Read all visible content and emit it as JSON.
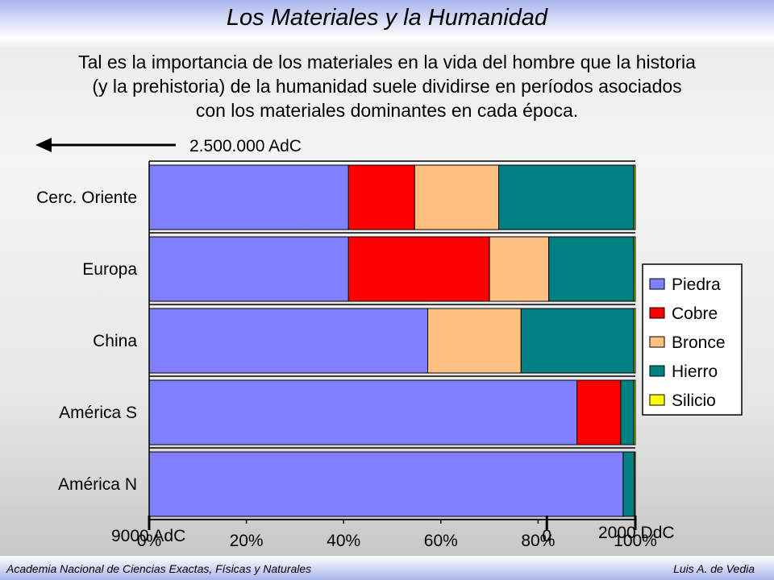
{
  "slide": {
    "title": "Los Materiales y la Humanidad",
    "subtitle_lines": [
      "Tal es la importancia de los materiales en la vida del hombre que la historia",
      "(y la prehistoria) de la humanidad suele dividirse en períodos asociados",
      "con los materiales dominantes en cada época."
    ],
    "footer_left": "Academia Nacional de Ciencias Exactas, Físicas y Naturales",
    "footer_right": "Luis A. de Vedia"
  },
  "annotations": {
    "top_arrow_label": "2.500.000 AdC",
    "bottom_left": "9000 AdC",
    "bottom_mid": "0",
    "bottom_right": "2000 DdC",
    "time_axis_ticks": [
      0,
      81.8,
      100
    ]
  },
  "chart_data": {
    "type": "bar",
    "orientation": "horizontal",
    "stacked": "percent",
    "categories": [
      "Cerc. Oriente",
      "Europa",
      "China",
      "América S",
      "América N"
    ],
    "x_tick_labels": [
      "0%",
      "20%",
      "40%",
      "60%",
      "80%",
      "100%"
    ],
    "xlim": [
      0,
      100
    ],
    "series": [
      {
        "name": "Piedra",
        "color": "#8080ff",
        "values": [
          41.0,
          41.0,
          57.3,
          88.0,
          97.5
        ]
      },
      {
        "name": "Cobre",
        "color": "#ff0000",
        "values": [
          13.6,
          29.0,
          0.0,
          9.0,
          0.0
        ]
      },
      {
        "name": "Bronce",
        "color": "#ffc080",
        "values": [
          17.3,
          12.2,
          19.2,
          0.0,
          0.0
        ]
      },
      {
        "name": "Hierro",
        "color": "#008080",
        "values": [
          27.8,
          17.5,
          23.2,
          2.7,
          2.3
        ]
      },
      {
        "name": "Silicio",
        "color": "#ffff00",
        "values": [
          0.3,
          0.3,
          0.3,
          0.3,
          0.2
        ]
      }
    ],
    "legend_position": "right"
  }
}
